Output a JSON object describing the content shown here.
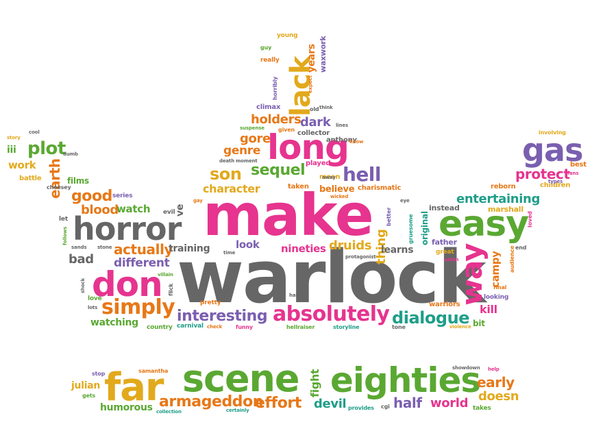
{
  "palette": {
    "pink": "#e6348f",
    "green": "#5aa832",
    "gray": "#666666",
    "orange": "#e77817",
    "yellow": "#e2a91c",
    "purple": "#7a5fb0",
    "teal": "#1f9e89",
    "red": "#d9363e"
  },
  "words": [
    {
      "text": "warlock",
      "color": "gray"
    },
    {
      "text": "make",
      "color": "pink"
    },
    {
      "text": "horror",
      "color": "gray"
    },
    {
      "text": "easy",
      "color": "green"
    },
    {
      "text": "don",
      "color": "pink"
    },
    {
      "text": "long",
      "color": "pink"
    },
    {
      "text": "gas",
      "color": "purple"
    },
    {
      "text": "way",
      "color": "pink"
    },
    {
      "text": "lack",
      "color": "yellow"
    },
    {
      "text": "scene",
      "color": "green"
    },
    {
      "text": "eighties",
      "color": "green"
    },
    {
      "text": "far",
      "color": "yellow"
    },
    {
      "text": "absolutely",
      "color": "pink"
    },
    {
      "text": "simply",
      "color": "orange"
    },
    {
      "text": "interesting",
      "color": "purple"
    },
    {
      "text": "dialogue",
      "color": "teal"
    },
    {
      "text": "hell",
      "color": "purple"
    },
    {
      "text": "son",
      "color": "yellow"
    },
    {
      "text": "sequel",
      "color": "green"
    },
    {
      "text": "plot",
      "color": "green"
    },
    {
      "text": "good",
      "color": "orange"
    },
    {
      "text": "blood",
      "color": "orange"
    },
    {
      "text": "actually",
      "color": "orange"
    },
    {
      "text": "different",
      "color": "purple"
    },
    {
      "text": "earth",
      "color": "orange"
    },
    {
      "text": "protect",
      "color": "pink"
    },
    {
      "text": "entertaining",
      "color": "teal"
    },
    {
      "text": "armageddon",
      "color": "orange"
    },
    {
      "text": "effort",
      "color": "orange"
    },
    {
      "text": "devil",
      "color": "teal"
    },
    {
      "text": "half",
      "color": "purple"
    },
    {
      "text": "world",
      "color": "pink"
    },
    {
      "text": "early",
      "color": "orange"
    },
    {
      "text": "doesn",
      "color": "yellow"
    },
    {
      "text": "fight",
      "color": "green"
    },
    {
      "text": "julian",
      "color": "yellow"
    },
    {
      "text": "humorous",
      "color": "green"
    },
    {
      "text": "holders",
      "color": "orange"
    },
    {
      "text": "dark",
      "color": "purple"
    },
    {
      "text": "gore",
      "color": "orange"
    },
    {
      "text": "genre",
      "color": "orange"
    },
    {
      "text": "character",
      "color": "yellow"
    },
    {
      "text": "believe",
      "color": "orange"
    },
    {
      "text": "druids",
      "color": "yellow"
    },
    {
      "text": "nineties",
      "color": "pink"
    },
    {
      "text": "look",
      "color": "purple"
    },
    {
      "text": "training",
      "color": "gray"
    },
    {
      "text": "bad",
      "color": "gray"
    },
    {
      "text": "watch",
      "color": "green"
    },
    {
      "text": "thing",
      "color": "yellow"
    },
    {
      "text": "learns",
      "color": "gray"
    },
    {
      "text": "campy",
      "color": "orange"
    },
    {
      "text": "kill",
      "color": "pink"
    },
    {
      "text": "watching",
      "color": "green"
    },
    {
      "text": "work",
      "color": "yellow"
    },
    {
      "text": "iii",
      "color": "green"
    },
    {
      "text": "battle",
      "color": "yellow"
    },
    {
      "text": "films",
      "color": "green"
    },
    {
      "text": "ve",
      "color": "gray"
    },
    {
      "text": "original",
      "color": "teal"
    },
    {
      "text": "marshall",
      "color": "yellow"
    },
    {
      "text": "instead",
      "color": "gray"
    },
    {
      "text": "father",
      "color": "purple"
    },
    {
      "text": "best",
      "color": "orange"
    },
    {
      "text": "children",
      "color": "yellow"
    },
    {
      "text": "reborn",
      "color": "orange"
    },
    {
      "text": "years",
      "color": "orange"
    },
    {
      "text": "waxwork",
      "color": "purple"
    },
    {
      "text": "anthony",
      "color": "gray"
    },
    {
      "text": "collector",
      "color": "gray"
    },
    {
      "text": "climax",
      "color": "purple"
    },
    {
      "text": "charismatic",
      "color": "orange"
    },
    {
      "text": "taken",
      "color": "orange"
    },
    {
      "text": "played",
      "color": "pink"
    },
    {
      "text": "mean",
      "color": "yellow"
    },
    {
      "text": "cheesey",
      "color": "gray"
    },
    {
      "text": "series",
      "color": "purple"
    },
    {
      "text": "evil",
      "color": "gray"
    },
    {
      "text": "let",
      "color": "gray"
    },
    {
      "text": "stone",
      "color": "gray"
    },
    {
      "text": "sands",
      "color": "gray"
    },
    {
      "text": "follows",
      "color": "green"
    },
    {
      "text": "shock",
      "color": "gray"
    },
    {
      "text": "love",
      "color": "green"
    },
    {
      "text": "lots",
      "color": "gray"
    },
    {
      "text": "villain",
      "color": "green"
    },
    {
      "text": "flick",
      "color": "gray"
    },
    {
      "text": "pretty",
      "color": "orange"
    },
    {
      "text": "country",
      "color": "green"
    },
    {
      "text": "carnival",
      "color": "teal"
    },
    {
      "text": "check",
      "color": "orange"
    },
    {
      "text": "funny",
      "color": "pink"
    },
    {
      "text": "hellraiser",
      "color": "green"
    },
    {
      "text": "storyline",
      "color": "teal"
    },
    {
      "text": "tone",
      "color": "gray"
    },
    {
      "text": "violence",
      "color": "yellow"
    },
    {
      "text": "bit",
      "color": "green"
    },
    {
      "text": "warriors",
      "color": "orange"
    },
    {
      "text": "looking",
      "color": "purple"
    },
    {
      "text": "final",
      "color": "orange"
    },
    {
      "text": "great",
      "color": "yellow"
    },
    {
      "text": "satan",
      "color": "pink"
    },
    {
      "text": "audience",
      "color": "orange"
    },
    {
      "text": "end",
      "color": "gray"
    },
    {
      "text": "loved",
      "color": "pink"
    },
    {
      "text": "involving",
      "color": "yellow"
    },
    {
      "text": "fans",
      "color": "pink"
    },
    {
      "text": "types",
      "color": "purple"
    },
    {
      "text": "young",
      "color": "yellow"
    },
    {
      "text": "guy",
      "color": "green"
    },
    {
      "text": "really",
      "color": "orange"
    },
    {
      "text": "horribly",
      "color": "purple"
    },
    {
      "text": "expect",
      "color": "orange"
    },
    {
      "text": "think",
      "color": "gray"
    },
    {
      "text": "old",
      "color": "gray"
    },
    {
      "text": "death",
      "color": "gray"
    },
    {
      "text": "moment",
      "color": "gray"
    },
    {
      "text": "suspense",
      "color": "green"
    },
    {
      "text": "given",
      "color": "orange"
    },
    {
      "text": "lines",
      "color": "gray"
    },
    {
      "text": "know",
      "color": "orange"
    },
    {
      "text": "wicked",
      "color": "orange"
    },
    {
      "text": "away",
      "color": "gray"
    },
    {
      "text": "better",
      "color": "purple"
    },
    {
      "text": "eye",
      "color": "gray"
    },
    {
      "text": "gruesome",
      "color": "teal"
    },
    {
      "text": "protagonist",
      "color": "gray"
    },
    {
      "text": "hair",
      "color": "gray"
    },
    {
      "text": "time",
      "color": "gray"
    },
    {
      "text": "gay",
      "color": "orange"
    },
    {
      "text": "cool",
      "color": "gray"
    },
    {
      "text": "story",
      "color": "yellow"
    },
    {
      "text": "dumb",
      "color": "gray"
    },
    {
      "text": "samantha",
      "color": "orange"
    },
    {
      "text": "stop",
      "color": "purple"
    },
    {
      "text": "gets",
      "color": "green"
    },
    {
      "text": "collection",
      "color": "teal"
    },
    {
      "text": "certainly",
      "color": "teal"
    },
    {
      "text": "provides",
      "color": "teal"
    },
    {
      "text": "cgi",
      "color": "gray"
    },
    {
      "text": "showdown",
      "color": "gray"
    },
    {
      "text": "help",
      "color": "pink"
    },
    {
      "text": "takes",
      "color": "green"
    }
  ]
}
